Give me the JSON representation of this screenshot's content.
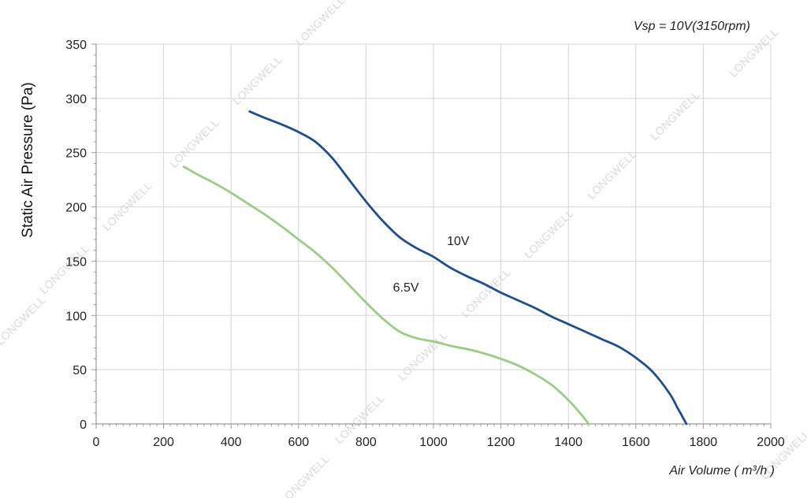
{
  "chart_data": {
    "type": "line",
    "title": "",
    "annotation": "Vsp = 10V(3150rpm)",
    "xlabel": "Air Volume ( m³/h )",
    "ylabel": "Static Air Pressure  (Pa)",
    "xlim": [
      0,
      2000
    ],
    "ylim": [
      0,
      350
    ],
    "x_ticks": [
      "0",
      "200",
      "400",
      "600",
      "800",
      "1000",
      "1200",
      "1400",
      "1600",
      "1800",
      "2000"
    ],
    "y_ticks": [
      "0",
      "50",
      "100",
      "150",
      "200",
      "250",
      "300",
      "350"
    ],
    "grid": true,
    "watermark": "LONGWELL",
    "series": [
      {
        "name": "10V",
        "color": "#1f4e8c",
        "points": [
          [
            455,
            288
          ],
          [
            500,
            282
          ],
          [
            550,
            276
          ],
          [
            600,
            269
          ],
          [
            650,
            260
          ],
          [
            700,
            245
          ],
          [
            750,
            225
          ],
          [
            800,
            205
          ],
          [
            850,
            187
          ],
          [
            900,
            172
          ],
          [
            950,
            162
          ],
          [
            1000,
            154
          ],
          [
            1050,
            144
          ],
          [
            1100,
            136
          ],
          [
            1150,
            129
          ],
          [
            1200,
            121
          ],
          [
            1250,
            114
          ],
          [
            1300,
            107
          ],
          [
            1350,
            99
          ],
          [
            1400,
            92
          ],
          [
            1450,
            85
          ],
          [
            1500,
            78
          ],
          [
            1550,
            71
          ],
          [
            1600,
            61
          ],
          [
            1650,
            48
          ],
          [
            1700,
            28
          ],
          [
            1725,
            14
          ],
          [
            1750,
            0
          ]
        ]
      },
      {
        "name": "6.5V",
        "color": "#9bcc85",
        "points": [
          [
            260,
            237
          ],
          [
            300,
            230
          ],
          [
            350,
            222
          ],
          [
            400,
            213
          ],
          [
            450,
            203
          ],
          [
            500,
            193
          ],
          [
            550,
            182
          ],
          [
            600,
            170
          ],
          [
            650,
            158
          ],
          [
            700,
            144
          ],
          [
            750,
            128
          ],
          [
            800,
            112
          ],
          [
            850,
            97
          ],
          [
            900,
            85
          ],
          [
            950,
            79
          ],
          [
            1000,
            76
          ],
          [
            1050,
            72
          ],
          [
            1100,
            69
          ],
          [
            1150,
            65
          ],
          [
            1200,
            60
          ],
          [
            1250,
            54
          ],
          [
            1300,
            46
          ],
          [
            1350,
            36
          ],
          [
            1400,
            22
          ],
          [
            1440,
            8
          ],
          [
            1460,
            0
          ]
        ]
      }
    ]
  }
}
